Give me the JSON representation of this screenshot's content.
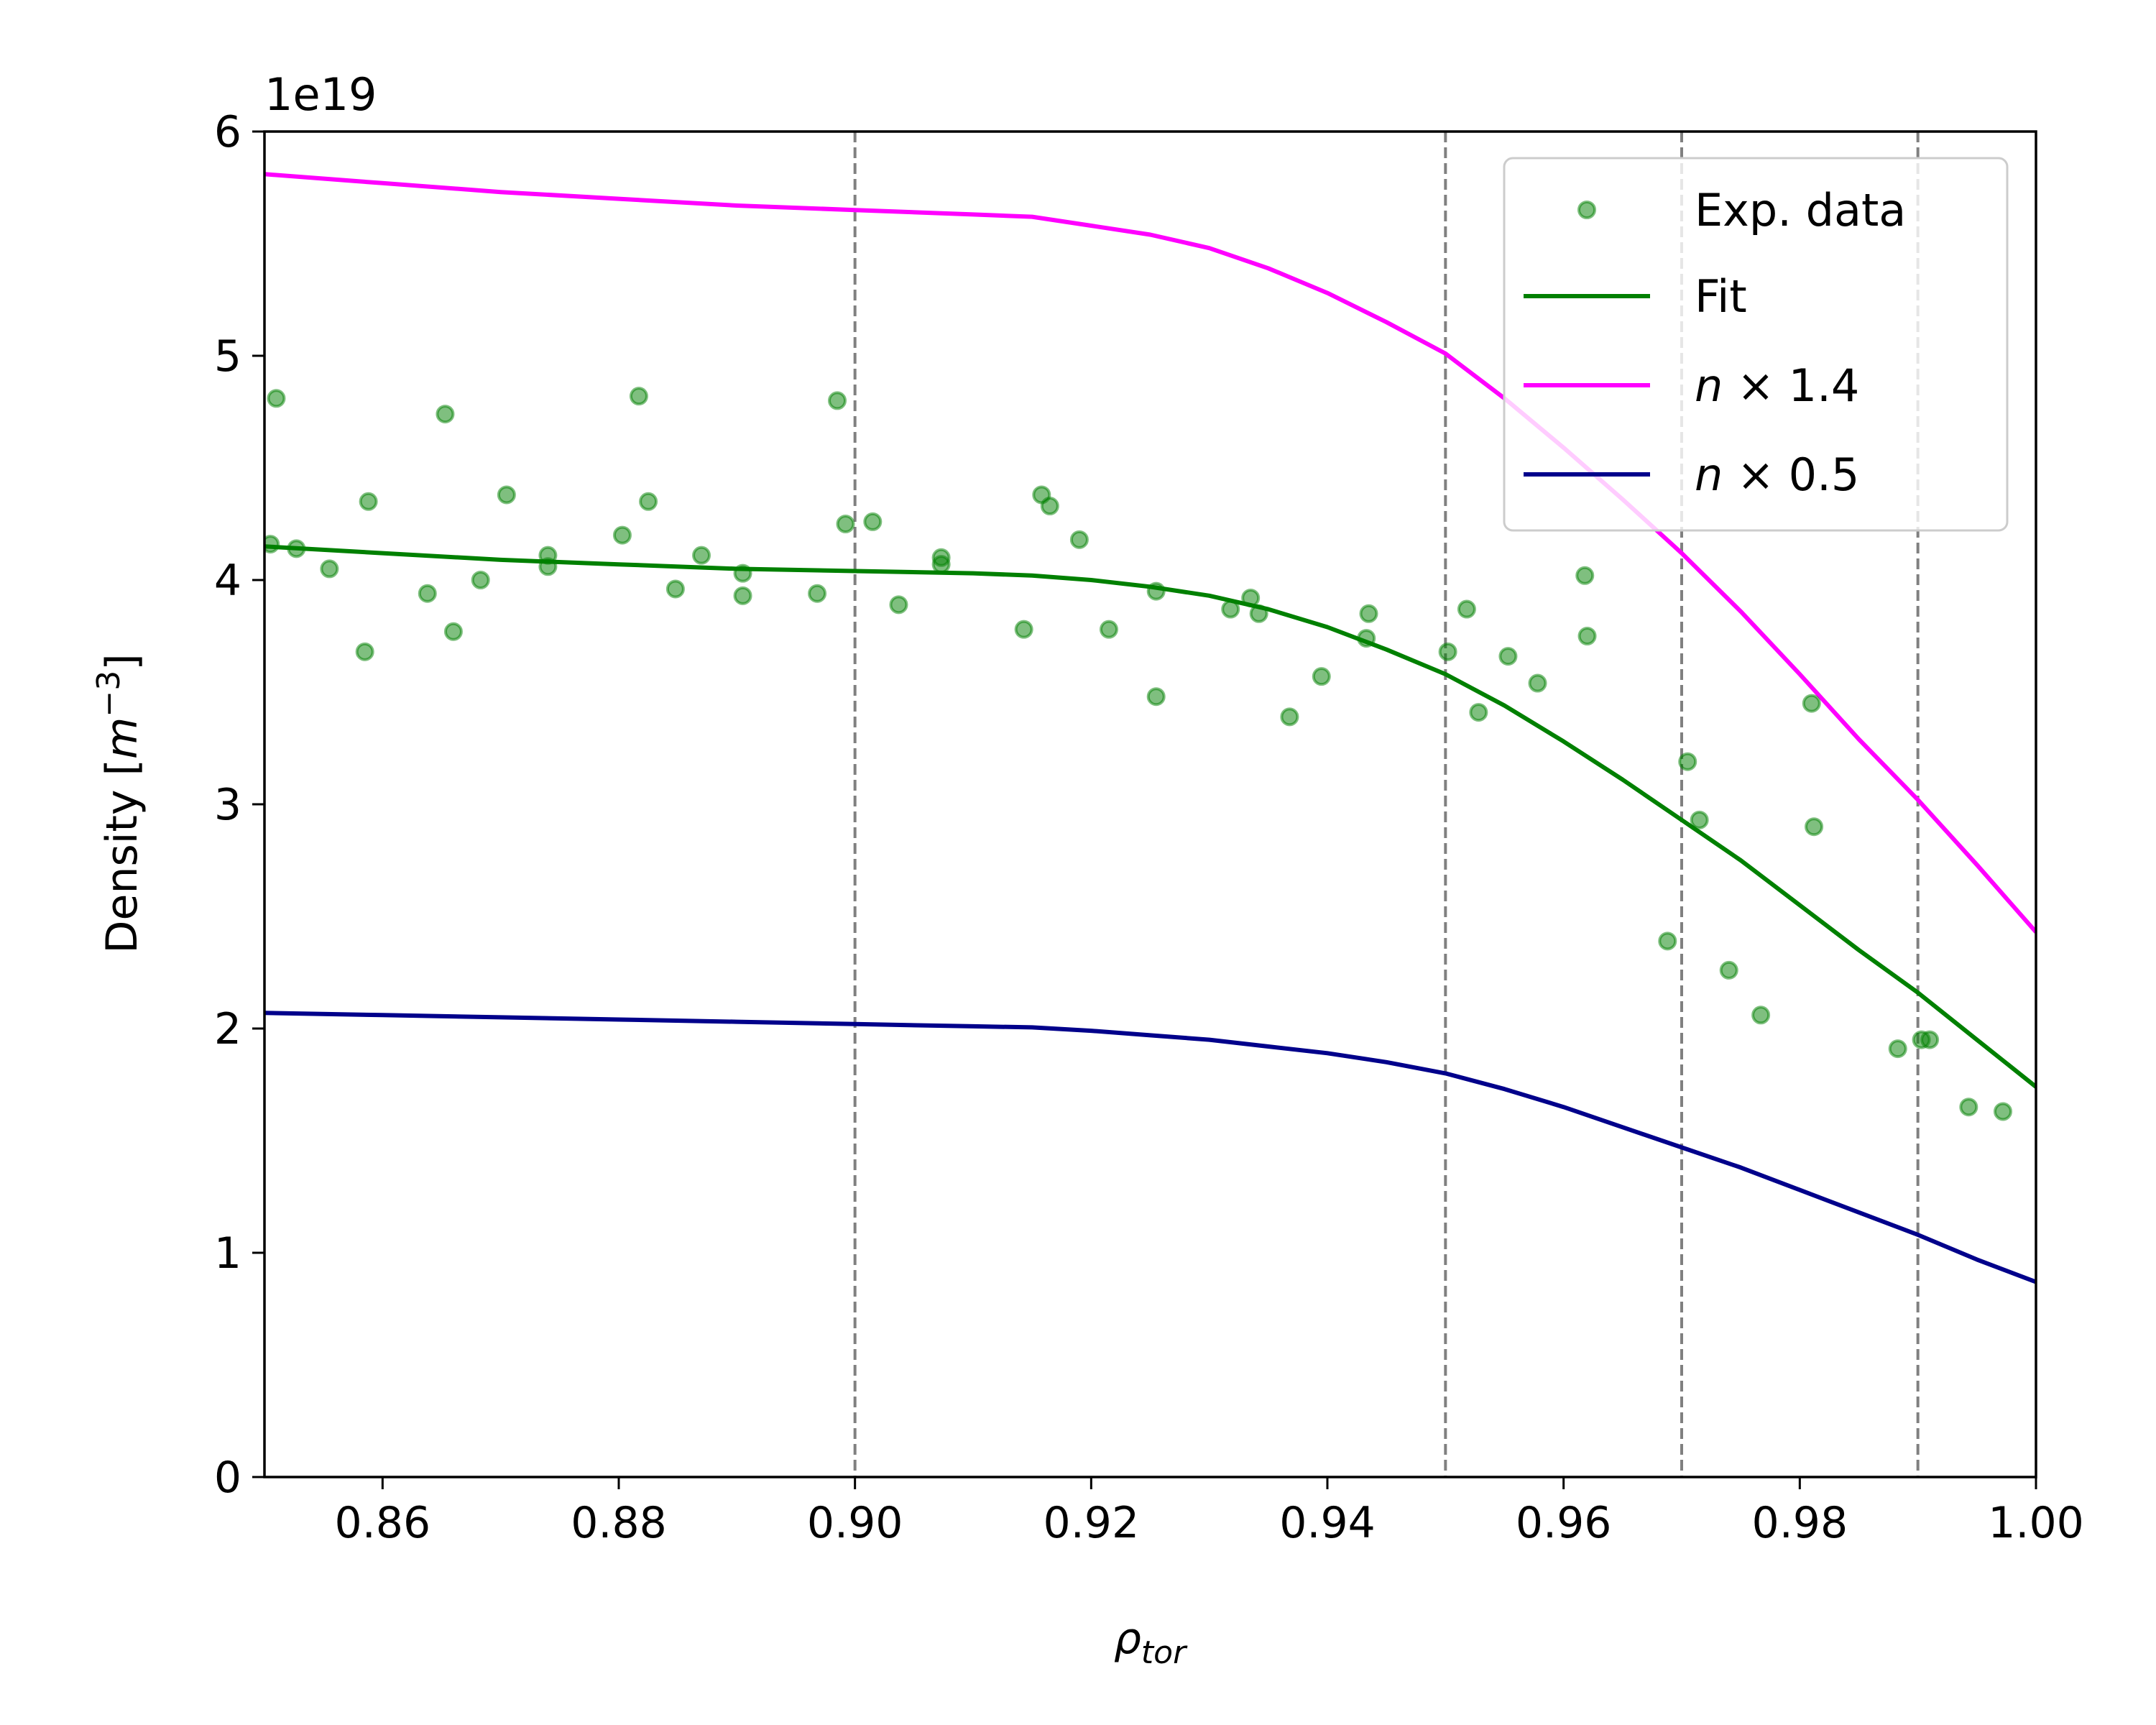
{
  "chart_data": {
    "type": "line",
    "title": "",
    "xlabel_base": "ρ",
    "xlabel_sub": "tor",
    "ylabel_text": "Density [",
    "ylabel_m": "m",
    "ylabel_exp": "−3",
    "ylabel_close": "]",
    "y_offset_label": "1e19",
    "xlim": [
      0.85,
      1.0
    ],
    "ylim": [
      0,
      6
    ],
    "xticks": [
      0.86,
      0.88,
      0.9,
      0.92,
      0.94,
      0.96,
      0.98,
      1.0
    ],
    "xtick_labels": [
      "0.86",
      "0.88",
      "0.90",
      "0.92",
      "0.94",
      "0.96",
      "0.98",
      "1.00"
    ],
    "yticks": [
      0,
      1,
      2,
      3,
      4,
      5,
      6
    ],
    "ytick_labels": [
      "0",
      "1",
      "2",
      "3",
      "4",
      "5",
      "6"
    ],
    "vlines": [
      0.9,
      0.95,
      0.97,
      0.99
    ],
    "grid": false,
    "legend_placement": "top-right",
    "colors": {
      "exp": "#008000",
      "fit": "#008000",
      "high": "#ff00ff",
      "low": "#00008b",
      "vline": "#808080"
    },
    "legend": {
      "exp": "Exp. data",
      "fit": "Fit",
      "high_var": "n",
      "high_rest": " × 1.4",
      "low_var": "n",
      "low_rest": " × 0.5"
    },
    "scatter": {
      "name": "Exp. data",
      "x": [
        0.8505,
        0.851,
        0.8527,
        0.8555,
        0.8585,
        0.8588,
        0.8638,
        0.8653,
        0.866,
        0.8683,
        0.8705,
        0.874,
        0.874,
        0.8803,
        0.8817,
        0.8825,
        0.8848,
        0.887,
        0.8905,
        0.8905,
        0.8968,
        0.8985,
        0.8992,
        0.9015,
        0.9037,
        0.9073,
        0.9073,
        0.9143,
        0.9158,
        0.9165,
        0.919,
        0.9215,
        0.9255,
        0.9255,
        0.9318,
        0.9335,
        0.9342,
        0.9368,
        0.9395,
        0.9433,
        0.9435,
        0.9502,
        0.9518,
        0.9528,
        0.9553,
        0.9578,
        0.9618,
        0.962,
        0.9688,
        0.9705,
        0.9715,
        0.974,
        0.9767,
        0.981,
        0.9812,
        0.9883,
        0.9903,
        0.991,
        0.9943,
        0.9972
      ],
      "y": [
        4.16,
        4.81,
        4.14,
        4.05,
        3.68,
        4.35,
        3.94,
        4.74,
        3.77,
        4.0,
        4.38,
        4.06,
        4.11,
        4.2,
        4.82,
        4.35,
        3.96,
        4.11,
        3.93,
        4.03,
        3.94,
        4.8,
        4.25,
        4.26,
        3.89,
        4.07,
        4.1,
        3.78,
        4.38,
        4.33,
        4.18,
        3.78,
        3.48,
        3.95,
        3.87,
        3.92,
        3.85,
        3.39,
        3.57,
        3.74,
        3.85,
        3.68,
        3.87,
        3.41,
        3.66,
        3.54,
        4.02,
        3.75,
        2.39,
        3.19,
        2.93,
        2.26,
        2.06,
        3.45,
        2.9,
        1.91,
        1.95,
        1.95,
        1.65,
        1.63
      ]
    },
    "x": [
      0.85,
      0.86,
      0.87,
      0.88,
      0.89,
      0.9,
      0.91,
      0.915,
      0.92,
      0.925,
      0.93,
      0.935,
      0.94,
      0.945,
      0.95,
      0.955,
      0.96,
      0.965,
      0.97,
      0.975,
      0.98,
      0.985,
      0.99,
      0.995,
      1.0
    ],
    "series": [
      {
        "name": "Fit",
        "values": [
          4.15,
          4.12,
          4.09,
          4.07,
          4.05,
          4.04,
          4.03,
          4.02,
          4.0,
          3.97,
          3.93,
          3.87,
          3.79,
          3.69,
          3.58,
          3.44,
          3.28,
          3.11,
          2.93,
          2.75,
          2.55,
          2.35,
          2.16,
          1.95,
          1.74
        ]
      },
      {
        "name": "n × 1.4",
        "values": [
          5.81,
          5.77,
          5.73,
          5.7,
          5.67,
          5.65,
          5.63,
          5.62,
          5.58,
          5.54,
          5.48,
          5.39,
          5.28,
          5.15,
          5.01,
          4.81,
          4.59,
          4.36,
          4.12,
          3.86,
          3.58,
          3.29,
          3.02,
          2.73,
          2.43
        ]
      },
      {
        "name": "n × 0.5",
        "values": [
          2.07,
          2.06,
          2.05,
          2.04,
          2.03,
          2.02,
          2.01,
          2.005,
          1.99,
          1.97,
          1.95,
          1.92,
          1.89,
          1.85,
          1.8,
          1.73,
          1.65,
          1.56,
          1.47,
          1.38,
          1.28,
          1.18,
          1.08,
          0.97,
          0.87
        ]
      }
    ]
  }
}
